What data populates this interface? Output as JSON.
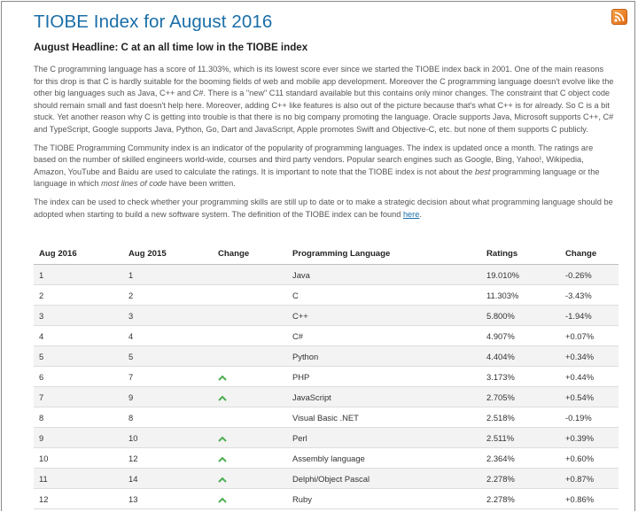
{
  "page": {
    "title": "TIOBE Index for August 2016",
    "headline": "August Headline: C at an all time low in the TIOBE index",
    "rss_icon": "rss-icon"
  },
  "paragraphs": {
    "p1": "The C programming language has a score of 11.303%, which is its lowest score ever since we started the TIOBE index back in 2001. One of the main reasons for this drop is that C is hardly suitable for the booming fields of web and mobile app development. Moreover the C programming language doesn't evolve like the other big languages such as Java, C++ and C#. There is a \"new\" C11 standard available but this contains only minor changes. The constraint that C object code should remain small and fast doesn't help here. Moreover, adding C++ like features is also out of the picture because that's what C++ is for already. So C is a bit stuck. Yet another reason why C is getting into trouble is that there is no big company promoting the language. Oracle supports Java, Microsoft supports C++, C# and TypeScript, Google supports Java, Python, Go, Dart and JavaScript, Apple promotes Swift and Objective-C, etc. but none of them supports C publicly.",
    "p2_a": "The TIOBE Programming Community index is an indicator of the popularity of programming languages. The index is updated once a month. The ratings are based on the number of skilled engineers world-wide, courses and third party vendors. Popular search engines such as Google, Bing, Yahoo!, Wikipedia, Amazon, YouTube and Baidu are used to calculate the ratings. It is important to note that the TIOBE index is not about the ",
    "p2_em1": "best",
    "p2_b": " programming language or the language in which ",
    "p2_em2": "most lines of code",
    "p2_c": " have been written.",
    "p3_a": "The index can be used to check whether your programming skills are still up to date or to make a strategic decision about what programming language should be adopted when starting to build a new software system. The definition of the TIOBE index can be found ",
    "p3_link": "here",
    "p3_b": "."
  },
  "table": {
    "headers": [
      "Aug 2016",
      "Aug 2015",
      "Change",
      "Programming Language",
      "Ratings",
      "Change"
    ],
    "rows": [
      {
        "aug2016": "1",
        "aug2015": "1",
        "up": false,
        "language": "Java",
        "rating": "19.010%",
        "change": "-0.26%"
      },
      {
        "aug2016": "2",
        "aug2015": "2",
        "up": false,
        "language": "C",
        "rating": "11.303%",
        "change": "-3.43%"
      },
      {
        "aug2016": "3",
        "aug2015": "3",
        "up": false,
        "language": "C++",
        "rating": "5.800%",
        "change": "-1.94%"
      },
      {
        "aug2016": "4",
        "aug2015": "4",
        "up": false,
        "language": "C#",
        "rating": "4.907%",
        "change": "+0.07%"
      },
      {
        "aug2016": "5",
        "aug2015": "5",
        "up": false,
        "language": "Python",
        "rating": "4.404%",
        "change": "+0.34%"
      },
      {
        "aug2016": "6",
        "aug2015": "7",
        "up": true,
        "language": "PHP",
        "rating": "3.173%",
        "change": "+0.44%"
      },
      {
        "aug2016": "7",
        "aug2015": "9",
        "up": true,
        "language": "JavaScript",
        "rating": "2.705%",
        "change": "+0.54%"
      },
      {
        "aug2016": "8",
        "aug2015": "8",
        "up": false,
        "language": "Visual Basic .NET",
        "rating": "2.518%",
        "change": "-0.19%"
      },
      {
        "aug2016": "9",
        "aug2015": "10",
        "up": true,
        "language": "Perl",
        "rating": "2.511%",
        "change": "+0.39%"
      },
      {
        "aug2016": "10",
        "aug2015": "12",
        "up": true,
        "language": "Assembly language",
        "rating": "2.364%",
        "change": "+0.60%"
      },
      {
        "aug2016": "11",
        "aug2015": "14",
        "up": true,
        "language": "Delphi/Object Pascal",
        "rating": "2.278%",
        "change": "+0.87%"
      },
      {
        "aug2016": "12",
        "aug2015": "13",
        "up": true,
        "language": "Ruby",
        "rating": "2.278%",
        "change": "+0.86%"
      }
    ],
    "up_icon": "chevron-up-icon",
    "up_color": "#4caf50"
  }
}
